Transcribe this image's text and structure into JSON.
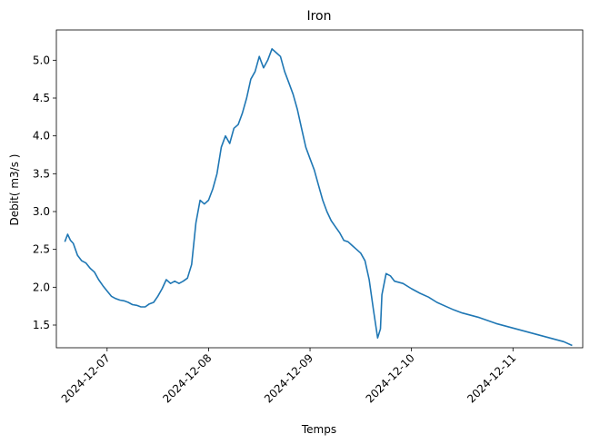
{
  "chart_data": {
    "type": "line",
    "title": "Iron",
    "xlabel": "Temps",
    "ylabel": "Debit( m3/s )",
    "x_tick_labels": [
      "2024-12-07",
      "2024-12-08",
      "2024-12-09",
      "2024-12-10",
      "2024-12-11"
    ],
    "y_tick_labels": [
      "1.5",
      "2.0",
      "2.5",
      "3.0",
      "3.5",
      "4.0",
      "4.5",
      "5.0"
    ],
    "xlim": [
      "2024-12-06T12:00",
      "2024-12-11T16:30"
    ],
    "ylim": [
      1.2,
      5.4
    ],
    "grid": false,
    "legend": "none",
    "series": [
      {
        "color": "#1f77b4",
        "points": [
          [
            "2024-12-06T14:00",
            2.6
          ],
          [
            "2024-12-06T14:40",
            2.7
          ],
          [
            "2024-12-06T15:20",
            2.62
          ],
          [
            "2024-12-06T16:00",
            2.58
          ],
          [
            "2024-12-06T17:00",
            2.42
          ],
          [
            "2024-12-06T18:00",
            2.35
          ],
          [
            "2024-12-06T19:00",
            2.32
          ],
          [
            "2024-12-06T20:00",
            2.25
          ],
          [
            "2024-12-06T21:00",
            2.2
          ],
          [
            "2024-12-06T22:00",
            2.1
          ],
          [
            "2024-12-06T23:00",
            2.02
          ],
          [
            "2024-12-07T00:00",
            1.95
          ],
          [
            "2024-12-07T01:00",
            1.88
          ],
          [
            "2024-12-07T02:00",
            1.85
          ],
          [
            "2024-12-07T03:00",
            1.83
          ],
          [
            "2024-12-07T04:00",
            1.82
          ],
          [
            "2024-12-07T05:00",
            1.8
          ],
          [
            "2024-12-07T06:00",
            1.77
          ],
          [
            "2024-12-07T07:00",
            1.76
          ],
          [
            "2024-12-07T08:00",
            1.74
          ],
          [
            "2024-12-07T09:00",
            1.74
          ],
          [
            "2024-12-07T10:00",
            1.78
          ],
          [
            "2024-12-07T11:00",
            1.8
          ],
          [
            "2024-12-07T12:00",
            1.88
          ],
          [
            "2024-12-07T13:00",
            1.98
          ],
          [
            "2024-12-07T14:00",
            2.1
          ],
          [
            "2024-12-07T15:00",
            2.05
          ],
          [
            "2024-12-07T16:00",
            2.08
          ],
          [
            "2024-12-07T17:00",
            2.05
          ],
          [
            "2024-12-07T18:00",
            2.08
          ],
          [
            "2024-12-07T19:00",
            2.12
          ],
          [
            "2024-12-07T20:00",
            2.3
          ],
          [
            "2024-12-07T21:00",
            2.85
          ],
          [
            "2024-12-07T22:00",
            3.15
          ],
          [
            "2024-12-07T23:00",
            3.1
          ],
          [
            "2024-12-08T00:00",
            3.15
          ],
          [
            "2024-12-08T01:00",
            3.3
          ],
          [
            "2024-12-08T02:00",
            3.5
          ],
          [
            "2024-12-08T03:00",
            3.85
          ],
          [
            "2024-12-08T04:00",
            4.0
          ],
          [
            "2024-12-08T05:00",
            3.9
          ],
          [
            "2024-12-08T06:00",
            4.1
          ],
          [
            "2024-12-08T07:00",
            4.15
          ],
          [
            "2024-12-08T08:00",
            4.3
          ],
          [
            "2024-12-08T09:00",
            4.5
          ],
          [
            "2024-12-08T10:00",
            4.75
          ],
          [
            "2024-12-08T11:00",
            4.85
          ],
          [
            "2024-12-08T12:00",
            5.05
          ],
          [
            "2024-12-08T13:00",
            4.9
          ],
          [
            "2024-12-08T14:00",
            5.0
          ],
          [
            "2024-12-08T15:00",
            5.15
          ],
          [
            "2024-12-08T16:00",
            5.1
          ],
          [
            "2024-12-08T17:00",
            5.05
          ],
          [
            "2024-12-08T18:00",
            4.85
          ],
          [
            "2024-12-08T19:00",
            4.7
          ],
          [
            "2024-12-08T20:00",
            4.55
          ],
          [
            "2024-12-08T21:00",
            4.35
          ],
          [
            "2024-12-08T22:00",
            4.1
          ],
          [
            "2024-12-08T23:00",
            3.85
          ],
          [
            "2024-12-09T00:00",
            3.7
          ],
          [
            "2024-12-09T01:00",
            3.55
          ],
          [
            "2024-12-09T02:00",
            3.35
          ],
          [
            "2024-12-09T03:00",
            3.15
          ],
          [
            "2024-12-09T04:00",
            3.0
          ],
          [
            "2024-12-09T05:00",
            2.88
          ],
          [
            "2024-12-09T06:00",
            2.8
          ],
          [
            "2024-12-09T07:00",
            2.72
          ],
          [
            "2024-12-09T08:00",
            2.62
          ],
          [
            "2024-12-09T09:00",
            2.6
          ],
          [
            "2024-12-09T10:00",
            2.55
          ],
          [
            "2024-12-09T11:00",
            2.5
          ],
          [
            "2024-12-09T12:00",
            2.45
          ],
          [
            "2024-12-09T13:00",
            2.35
          ],
          [
            "2024-12-09T14:00",
            2.1
          ],
          [
            "2024-12-09T15:00",
            1.7
          ],
          [
            "2024-12-09T16:00",
            1.33
          ],
          [
            "2024-12-09T16:40",
            1.45
          ],
          [
            "2024-12-09T17:00",
            1.9
          ],
          [
            "2024-12-09T18:00",
            2.18
          ],
          [
            "2024-12-09T19:00",
            2.15
          ],
          [
            "2024-12-09T20:00",
            2.08
          ],
          [
            "2024-12-09T22:00",
            2.05
          ],
          [
            "2024-12-10T00:00",
            1.98
          ],
          [
            "2024-12-10T02:00",
            1.92
          ],
          [
            "2024-12-10T04:00",
            1.87
          ],
          [
            "2024-12-10T06:00",
            1.8
          ],
          [
            "2024-12-10T08:00",
            1.75
          ],
          [
            "2024-12-10T10:00",
            1.7
          ],
          [
            "2024-12-10T12:00",
            1.66
          ],
          [
            "2024-12-10T14:00",
            1.63
          ],
          [
            "2024-12-10T16:00",
            1.6
          ],
          [
            "2024-12-10T18:00",
            1.56
          ],
          [
            "2024-12-10T20:00",
            1.52
          ],
          [
            "2024-12-10T22:00",
            1.49
          ],
          [
            "2024-12-11T00:00",
            1.46
          ],
          [
            "2024-12-11T02:00",
            1.43
          ],
          [
            "2024-12-11T04:00",
            1.4
          ],
          [
            "2024-12-11T06:00",
            1.37
          ],
          [
            "2024-12-11T08:00",
            1.34
          ],
          [
            "2024-12-11T10:00",
            1.31
          ],
          [
            "2024-12-11T12:00",
            1.28
          ],
          [
            "2024-12-11T14:00",
            1.23
          ]
        ]
      }
    ]
  }
}
